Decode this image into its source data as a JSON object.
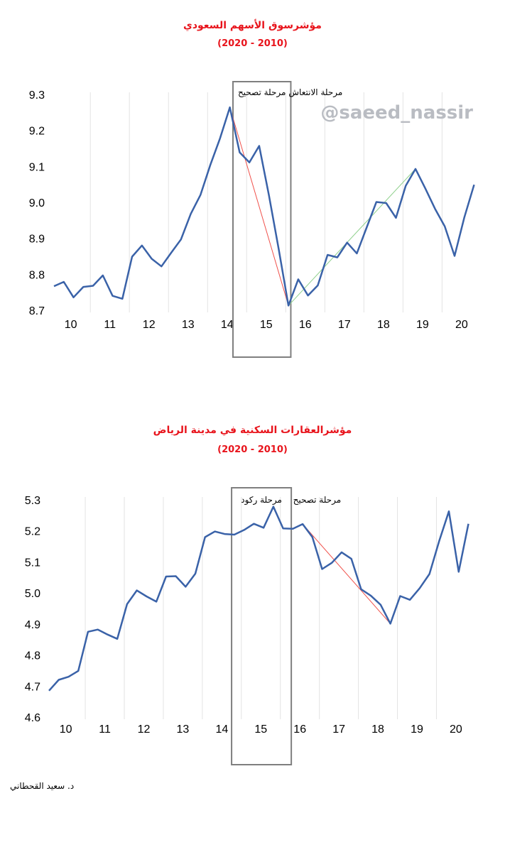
{
  "author": "د. سعيد القحطاني",
  "watermark": "@saeed_nassir",
  "chart_data": [
    {
      "type": "line",
      "title": "مؤشرسوق الأسهم السعودي",
      "subtitle": "(2020 - 2010)",
      "ylim": [
        8.7,
        9.3
      ],
      "yticks": [
        "9.3",
        "9.2",
        "9.1",
        "9.0",
        "8.9",
        "8.8",
        "8.7"
      ],
      "xticks": [
        "10",
        "11",
        "12",
        "13",
        "14",
        "15",
        "16",
        "17",
        "18",
        "19",
        "20"
      ],
      "xlim": [
        9.57,
        20.42
      ],
      "grid": "vertical",
      "color": "#3a62a8",
      "x": [
        9.57,
        9.82,
        10.07,
        10.32,
        10.57,
        10.82,
        11.07,
        11.32,
        11.57,
        11.82,
        12.07,
        12.32,
        12.57,
        12.82,
        13.07,
        13.32,
        13.57,
        13.82,
        14.07,
        14.32,
        14.57,
        14.82,
        15.07,
        15.32,
        15.57,
        15.82,
        16.07,
        16.32,
        16.57,
        16.82,
        17.07,
        17.32,
        17.57,
        17.82,
        18.07,
        18.32,
        18.57,
        18.82,
        19.07,
        19.32,
        19.57,
        19.82,
        20.07,
        20.32
      ],
      "y": [
        8.767,
        8.779,
        8.736,
        8.765,
        8.768,
        8.797,
        8.74,
        8.732,
        8.849,
        8.88,
        8.843,
        8.822,
        8.86,
        8.897,
        8.968,
        9.021,
        9.104,
        9.178,
        9.264,
        9.139,
        9.111,
        9.157,
        9.02,
        8.87,
        8.713,
        8.786,
        8.741,
        8.769,
        8.854,
        8.847,
        8.888,
        8.858,
        8.93,
        9.001,
        8.998,
        8.957,
        9.046,
        9.093,
        9.039,
        8.982,
        8.933,
        8.851,
        8.958,
        9.049
      ],
      "phases": [
        {
          "label": "مرحلة تصحيح",
          "x_start": 14.15,
          "x_end": 15.63
        },
        {
          "label": "مرحلة الانتعاش",
          "x_start": 15.63,
          "x_end": 16.9
        }
      ],
      "trendlines": [
        {
          "color": "#f0504a",
          "from": [
            14.07,
            9.264
          ],
          "to": [
            15.57,
            8.713
          ]
        },
        {
          "color": "#8fd08c",
          "from": [
            15.57,
            8.713
          ],
          "to": [
            18.82,
            9.093
          ]
        }
      ]
    },
    {
      "type": "line",
      "title": "مؤشرالعقارات السكنية في مدينة الرياض",
      "subtitle": "(2020 - 2010)",
      "ylim": [
        4.6,
        5.3
      ],
      "yticks": [
        "5.3",
        "5.2",
        "5.1",
        "5.0",
        "4.9",
        "4.8",
        "4.7",
        "4.6"
      ],
      "xticks": [
        "10",
        "11",
        "12",
        "13",
        "14",
        "15",
        "16",
        "17",
        "18",
        "19",
        "20"
      ],
      "xlim": [
        9.57,
        20.42
      ],
      "grid": "vertical",
      "color": "#3a62a8",
      "x": [
        9.57,
        9.82,
        10.07,
        10.32,
        10.57,
        10.82,
        11.07,
        11.32,
        11.57,
        11.82,
        12.07,
        12.32,
        12.57,
        12.82,
        13.07,
        13.32,
        13.57,
        13.82,
        14.07,
        14.32,
        14.57,
        14.82,
        15.07,
        15.32,
        15.57,
        15.82,
        16.07,
        16.32,
        16.57,
        16.82,
        17.07,
        17.32,
        17.57,
        17.82,
        18.07,
        18.32,
        18.57,
        18.82,
        19.07,
        19.32,
        19.57,
        19.82,
        20.07,
        20.32
      ],
      "y": [
        4.685,
        4.72,
        4.73,
        4.749,
        4.875,
        4.882,
        4.866,
        4.852,
        4.964,
        5.008,
        4.989,
        4.972,
        5.053,
        5.054,
        5.02,
        5.062,
        5.18,
        5.198,
        5.19,
        5.188,
        5.203,
        5.223,
        5.21,
        5.278,
        5.208,
        5.207,
        5.222,
        5.18,
        5.077,
        5.097,
        5.131,
        5.11,
        5.012,
        4.991,
        4.962,
        4.901,
        4.99,
        4.978,
        5.015,
        5.061,
        5.167,
        5.263,
        5.068,
        5.223
      ],
      "phases": [
        {
          "label": "مرحلة ركود",
          "x_start": 14.25,
          "x_end": 15.78
        },
        {
          "label": "مرحلة تصحيح",
          "x_start": 15.78,
          "x_end": 17.1
        }
      ],
      "trendlines": [
        {
          "color": "#f0504a",
          "from": [
            16.07,
            5.222
          ],
          "to": [
            18.32,
            4.901
          ]
        }
      ]
    }
  ]
}
